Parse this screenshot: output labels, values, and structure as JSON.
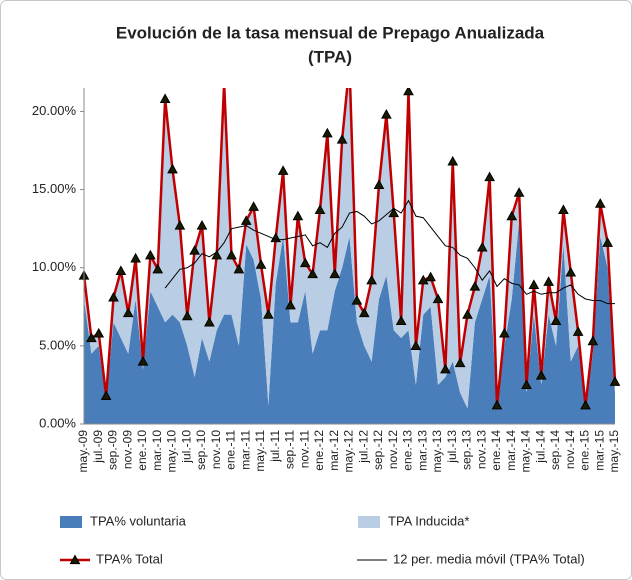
{
  "chart_data": {
    "type": "line",
    "title": [
      "Evolución de la tasa mensual de Prepago Anualizada",
      "(TPA)"
    ],
    "categories": [
      "may.-09",
      null,
      "jul.-09",
      null,
      "sep.-09",
      null,
      "nov.-09",
      null,
      "ene.-10",
      null,
      "mar.-10",
      null,
      "may.-10",
      null,
      "jul.-10",
      null,
      "sep.-10",
      null,
      "nov.-10",
      null,
      "ene.-11",
      null,
      "mar.-11",
      null,
      "may.-11",
      null,
      "jul.-11",
      null,
      "sep.-11",
      null,
      "nov.-11",
      null,
      "ene.-12",
      null,
      "mar.-12",
      null,
      "may.-12",
      null,
      "jul.-12",
      null,
      "sep.-12",
      null,
      "nov.-12",
      null,
      "ene.-13",
      null,
      "mar.-13",
      null,
      "may.-13",
      null,
      "jul.-13",
      null,
      "sep.-13",
      null,
      "nov.-13",
      null,
      "ene.-14",
      null,
      "mar.-14",
      null,
      "may.-14",
      null,
      "jul.-14",
      null,
      "sep.-14",
      null,
      "nov.-14",
      null,
      "ene.-15",
      null,
      "mar.-15",
      null,
      "may.-15"
    ],
    "series": [
      {
        "name": "TPA% voluntaria",
        "kind": "area",
        "color": "#4a7ebb",
        "values": [
          8,
          4.5,
          5,
          1.5,
          6.5,
          5.5,
          4.5,
          8,
          3.5,
          8.5,
          7.5,
          6.5,
          7,
          6.5,
          5,
          3,
          5.5,
          4,
          6,
          7,
          7,
          5,
          11.5,
          10.5,
          8,
          1.2,
          9,
          12,
          6.5,
          6.5,
          8.5,
          4.5,
          6,
          6,
          8.5,
          10,
          12,
          6.5,
          5,
          4,
          8,
          9.5,
          6,
          5.5,
          6,
          2.5,
          7,
          7.5,
          2.5,
          3,
          4,
          2,
          1,
          6.5,
          8,
          9.5,
          1,
          5,
          8,
          13,
          2,
          7,
          2.5,
          7,
          5,
          11.5,
          4,
          5,
          1,
          4.5,
          12,
          10,
          2
        ]
      },
      {
        "name": "TPA Inducida*",
        "kind": "area",
        "color": "#b9cde5",
        "values": [
          1.5,
          1.0,
          0.8,
          0.3,
          1.6,
          4.3,
          2.6,
          2.6,
          0.5,
          2.3,
          2.4,
          14.3,
          9.3,
          6.2,
          1.9,
          8.1,
          7.2,
          2.5,
          4.8,
          14.8,
          3.8,
          4.9,
          1.5,
          3.4,
          2.2,
          5.8,
          2.9,
          4.2,
          1.1,
          6.8,
          1.8,
          5.1,
          7.7,
          12.6,
          1.1,
          8.2,
          11.0,
          1.4,
          2.1,
          5.2,
          7.3,
          10.3,
          7.5,
          1.1,
          15.3,
          2.5,
          2.2,
          1.9,
          5.5,
          0.5,
          12.8,
          1.9,
          6.0,
          2.3,
          3.3,
          6.3,
          0.2,
          0.8,
          5.3,
          1.8,
          0.5,
          1.9,
          0.6,
          2.1,
          1.6,
          2.2,
          5.7,
          0.9,
          0.2,
          0.8,
          2.1,
          1.6,
          0.7
        ]
      },
      {
        "name": "TPA% Total",
        "kind": "line-marker",
        "color": "#c00000",
        "values": [
          9.5,
          5.5,
          5.8,
          1.8,
          8.1,
          9.8,
          7.1,
          10.6,
          4.0,
          10.8,
          9.9,
          20.8,
          16.3,
          12.7,
          6.9,
          11.1,
          12.7,
          6.5,
          10.8,
          21.8,
          10.8,
          9.9,
          13.0,
          13.9,
          10.2,
          7.0,
          11.9,
          16.2,
          7.6,
          13.3,
          10.3,
          9.6,
          13.7,
          18.6,
          9.6,
          18.2,
          23.0,
          7.9,
          7.1,
          9.2,
          15.3,
          19.8,
          13.5,
          6.6,
          21.3,
          5.0,
          9.2,
          9.4,
          8.0,
          3.5,
          16.8,
          3.9,
          7.0,
          8.8,
          11.3,
          15.8,
          1.2,
          5.8,
          13.3,
          14.8,
          2.5,
          8.9,
          3.1,
          9.1,
          6.6,
          13.7,
          9.7,
          5.9,
          1.2,
          5.3,
          14.1,
          11.6,
          2.7
        ]
      },
      {
        "name": "12 per. media móvil (TPA% Total)",
        "kind": "line",
        "color": "#000000",
        "values": [
          null,
          null,
          null,
          null,
          null,
          null,
          null,
          null,
          null,
          null,
          null,
          8.7,
          9.3,
          9.9,
          10.0,
          10.3,
          10.9,
          10.7,
          11.0,
          11.6,
          12.5,
          12.6,
          12.7,
          12.4,
          12.2,
          12.0,
          11.8,
          11.8,
          11.9,
          12.0,
          12.1,
          11.4,
          11.6,
          11.3,
          12.2,
          12.6,
          13.5,
          13.6,
          13.3,
          12.8,
          13.0,
          13.4,
          13.8,
          13.5,
          14.3,
          13.3,
          13.2,
          12.6,
          12.0,
          11.4,
          11.3,
          10.8,
          10.6,
          10.0,
          9.2,
          9.8,
          8.8,
          9.3,
          9.0,
          8.9,
          8.3,
          8.5,
          8.3,
          8.4,
          8.4,
          8.7,
          8.9,
          8.3,
          8.0,
          7.9,
          7.9,
          7.7,
          7.7
        ]
      }
    ],
    "ylim": [
      0,
      21.5
    ],
    "yticks": [
      {
        "value": 0,
        "label": "0.00%"
      },
      {
        "value": 5,
        "label": "5.00%"
      },
      {
        "value": 10,
        "label": "10.00%"
      },
      {
        "value": 15,
        "label": "15.00%"
      },
      {
        "value": 20,
        "label": "20.00%"
      }
    ],
    "grid": false,
    "legend": "bottom"
  }
}
